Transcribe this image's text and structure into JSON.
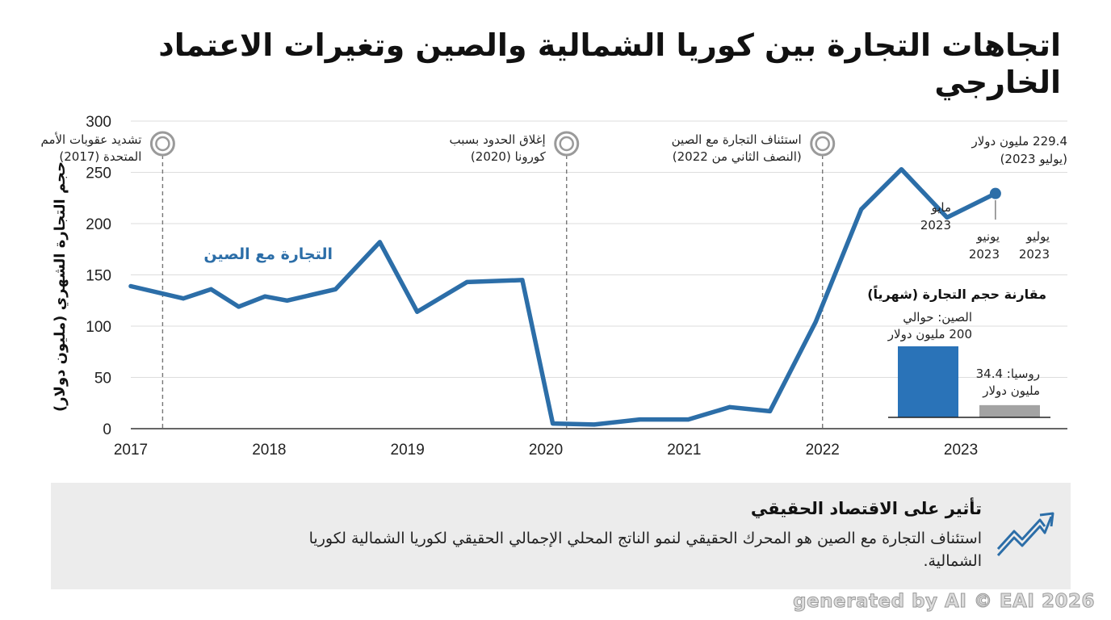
{
  "title": "اتجاهات التجارة بين كوريا الشمالية والصين وتغيرات الاعتماد الخارجي",
  "chart_data": {
    "type": "line",
    "ylabel": "حجم التجارة الشهري (مليون دولار)",
    "ylim": [
      0,
      300
    ],
    "yticks": [
      0,
      50,
      100,
      150,
      200,
      250,
      300
    ],
    "xlim": [
      2017.0,
      2023.77
    ],
    "xticks": [
      "2017",
      "2018",
      "2019",
      "2020",
      "2021",
      "2022",
      "2023"
    ],
    "grid": true,
    "series": [
      {
        "name": "التجارة مع الصين",
        "color": "#2c6ea8",
        "points": [
          [
            2017.0,
            139
          ],
          [
            2017.38,
            127
          ],
          [
            2017.58,
            136
          ],
          [
            2017.78,
            119
          ],
          [
            2017.97,
            129
          ],
          [
            2018.13,
            125
          ],
          [
            2018.48,
            136
          ],
          [
            2018.8,
            182
          ],
          [
            2019.07,
            114
          ],
          [
            2019.43,
            143
          ],
          [
            2019.83,
            145
          ],
          [
            2020.05,
            5
          ],
          [
            2020.35,
            4
          ],
          [
            2020.68,
            9
          ],
          [
            2021.03,
            9
          ],
          [
            2021.33,
            21
          ],
          [
            2021.62,
            17
          ],
          [
            2021.95,
            104
          ],
          [
            2022.28,
            214
          ],
          [
            2022.57,
            253
          ],
          [
            2022.9,
            206
          ],
          [
            2023.25,
            229.4
          ]
        ],
        "highlight_last": true
      }
    ],
    "events": [
      {
        "x": 2017.23,
        "lines": [
          "تشديد عقوبات الأمم",
          "المتحدة (2017)"
        ]
      },
      {
        "x": 2020.15,
        "lines": [
          "إغلاق الحدود بسبب",
          "كورونا (2020)"
        ]
      },
      {
        "x": 2022.0,
        "lines": [
          "استئناف التجارة مع الصين",
          "(النصف الثاني من 2022)"
        ]
      }
    ],
    "point_annotations": [
      {
        "lines": [
          "229.4 مليون دولار",
          "(يوليو 2023)"
        ]
      },
      {
        "lines": [
          "مايو",
          "2023"
        ]
      },
      {
        "lines": [
          "يونيو",
          "2023"
        ]
      },
      {
        "lines": [
          "يوليو",
          "2023"
        ]
      }
    ],
    "inset": {
      "title": "مقارنة حجم التجارة (شهرياً)",
      "bars": [
        {
          "lines": [
            "الصين: حوالي",
            "200 مليون دولار"
          ],
          "value": 200,
          "color": "#2a73b8"
        },
        {
          "lines": [
            "روسيا: 34.4",
            "مليون دولار"
          ],
          "value": 34.4,
          "color": "#a3a3a3"
        }
      ]
    }
  },
  "impact": {
    "title": "تأثير على الاقتصاد الحقيقي",
    "body": "استئناف التجارة مع الصين هو المحرك الحقيقي لنمو الناتج المحلي الإجمالي الحقيقي لكوريا الشمالية لكوريا الشمالية.",
    "icon": "trend-up-icon"
  },
  "watermark": "generated by AI © EAI 2026"
}
